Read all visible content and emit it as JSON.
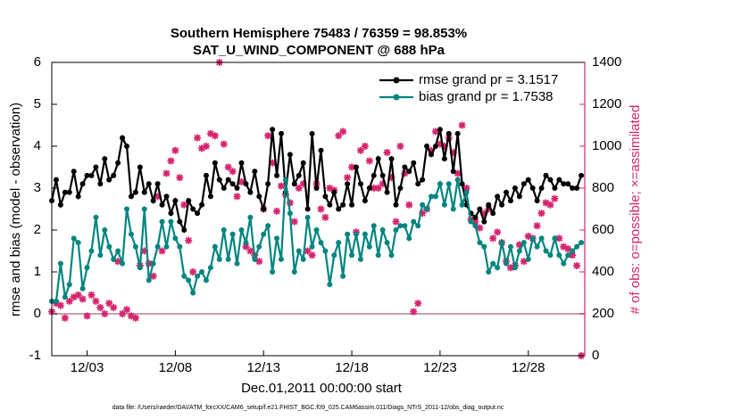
{
  "chart_data": {
    "type": "line",
    "title": "Southern Hemisphere 75483 / 76359 = 98.853%",
    "subtitle": "SAT_U_WIND_COMPONENT @ 688 hPa",
    "x_label": "Dec.01,2011 00:00:00 start",
    "y_label": "rmse and bias (model - observation)",
    "y2_label": "# of obs: o=possible; ×=assimilated",
    "footnote": "data file: /Users/raeder/DAI/ATM_forcXX/CAM6_setup/f.e21.FHIST_BGC.f09_025.CAM6assim.011/Diags_NTrS_2011-12/obs_diag_output.nc",
    "legend": "upper right",
    "hline": 0,
    "xlim": [
      0,
      30.2
    ],
    "xticks": [
      {
        "value": 2,
        "label": "12/03"
      },
      {
        "value": 7,
        "label": "12/08"
      },
      {
        "value": 12,
        "label": "12/13"
      },
      {
        "value": 17,
        "label": "12/18"
      },
      {
        "value": 22,
        "label": "12/23"
      },
      {
        "value": 27,
        "label": "12/28"
      }
    ],
    "ylim": [
      -1,
      6
    ],
    "yticks": [
      -1,
      0,
      1,
      2,
      3,
      4,
      5,
      6
    ],
    "y2lim": [
      0,
      1400
    ],
    "y2ticks": [
      0,
      200,
      400,
      600,
      800,
      1000,
      1200,
      1400
    ],
    "x": [
      0,
      0.25,
      0.5,
      0.75,
      1,
      1.25,
      1.5,
      1.75,
      2,
      2.25,
      2.5,
      2.75,
      3,
      3.25,
      3.5,
      3.75,
      4,
      4.25,
      4.5,
      4.75,
      5,
      5.25,
      5.5,
      5.75,
      6,
      6.25,
      6.5,
      6.75,
      7,
      7.25,
      7.5,
      7.75,
      8,
      8.25,
      8.5,
      8.75,
      9,
      9.25,
      9.5,
      9.75,
      10,
      10.25,
      10.5,
      10.75,
      11,
      11.25,
      11.5,
      11.75,
      12,
      12.25,
      12.5,
      12.75,
      13,
      13.25,
      13.5,
      13.75,
      14,
      14.25,
      14.5,
      14.75,
      15,
      15.25,
      15.5,
      15.75,
      16,
      16.25,
      16.5,
      16.75,
      17,
      17.25,
      17.5,
      17.75,
      18,
      18.25,
      18.5,
      18.75,
      19,
      19.25,
      19.5,
      19.75,
      20,
      20.25,
      20.5,
      20.75,
      21,
      21.25,
      21.5,
      21.75,
      22,
      22.25,
      22.5,
      22.75,
      23,
      23.25,
      23.5,
      23.75,
      24,
      24.25,
      24.5,
      24.75,
      25,
      25.25,
      25.5,
      25.75,
      26,
      26.25,
      26.5,
      26.75,
      27,
      27.25,
      27.5,
      27.75,
      28,
      28.25,
      28.5,
      28.75,
      29,
      29.25,
      29.5,
      29.75,
      30
    ],
    "series": [
      {
        "name": "rmse grand pr = 3.1517",
        "color": "#000000",
        "values": [
          2.7,
          3.2,
          2.6,
          2.9,
          2.9,
          3.4,
          2.8,
          3.1,
          3.3,
          3.3,
          3.5,
          3.1,
          3.7,
          3.2,
          3.3,
          3.6,
          4.2,
          4.0,
          2.8,
          2.9,
          3.5,
          2.9,
          3.1,
          2.7,
          3.1,
          2.6,
          2.8,
          2.4,
          2.7,
          2.2,
          2.0,
          2.7,
          2.5,
          2.4,
          2.6,
          3.3,
          2.8,
          3.6,
          3.2,
          3.0,
          3.2,
          3.1,
          3.0,
          3.6,
          3.1,
          2.9,
          3.4,
          2.8,
          2.5,
          3.1,
          4.4,
          3.3,
          4.3,
          2.9,
          3.8,
          3.1,
          3.3,
          3.6,
          2.5,
          4.3,
          3.0,
          3.9,
          2.8,
          2.6,
          2.9,
          2.5,
          2.6,
          3.1,
          2.6,
          3.5,
          3.1,
          2.7,
          3.0,
          3.3,
          3.7,
          3.3,
          2.9,
          3.7,
          2.6,
          3.0,
          3.5,
          3.4,
          3.6,
          3.1,
          3.2,
          4.0,
          3.8,
          4.0,
          4.4,
          3.7,
          4.3,
          3.4,
          4.3,
          3.1,
          2.6,
          2.4,
          2.3,
          2.5,
          2.2,
          2.6,
          2.4,
          2.8,
          2.6,
          2.9,
          2.7,
          3.0,
          2.8,
          3.1,
          3.2,
          3.0,
          2.7,
          3.0,
          3.3,
          3.2,
          3.0,
          3.2,
          3.1,
          3.1,
          3.0,
          3.0,
          3.3
        ]
      },
      {
        "name": "bias grand pr = 1.7538",
        "color": "#00857f",
        "values": [
          0.3,
          0.3,
          1.2,
          0.4,
          0.7,
          1.8,
          1.7,
          0.6,
          1.1,
          1.5,
          2.3,
          1.4,
          2.0,
          1.6,
          1.3,
          1.5,
          1.2,
          2.5,
          1.9,
          1.6,
          1.1,
          2.5,
          0.8,
          1.2,
          1.6,
          2.2,
          1.6,
          2.2,
          1.8,
          1.6,
          0.9,
          0.8,
          0.5,
          0.9,
          1.0,
          0.8,
          1.1,
          1.6,
          1.3,
          2.0,
          1.3,
          1.9,
          1.2,
          2.0,
          1.7,
          2.3,
          1.3,
          1.6,
          1.9,
          2.1,
          1.0,
          1.8,
          1.3,
          3.2,
          2.4,
          1.0,
          1.5,
          1.3,
          2.3,
          1.6,
          2.0,
          1.7,
          1.5,
          0.7,
          1.4,
          1.7,
          0.9,
          1.9,
          1.4,
          1.9,
          1.3,
          1.9,
          1.6,
          2.1,
          1.4,
          2.0,
          1.7,
          1.4,
          2.0,
          2.1,
          2.1,
          1.8,
          2.2,
          2.1,
          2.6,
          2.5,
          2.8,
          2.8,
          3.1,
          2.6,
          3.1,
          2.5,
          3.2,
          2.6,
          2.9,
          2.2,
          2.1,
          1.7,
          1.6,
          1.0,
          1.2,
          1.1,
          1.7,
          1.2,
          1.6,
          1.1,
          1.5,
          1.7,
          1.3,
          1.8,
          1.6,
          1.8,
          1.5,
          1.4,
          1.8,
          1.4,
          1.2,
          1.4,
          1.5,
          1.6,
          1.7
        ]
      },
      {
        "type": "scatter",
        "axis": "y2",
        "color": "#d6246e",
        "values": [
          210,
          250,
          240,
          180,
          260,
          280,
          290,
          270,
          190,
          290,
          260,
          230,
          200,
          250,
          230,
          450,
          200,
          220,
          190,
          180,
          430,
          500,
          440,
          380,
          760,
          500,
          870,
          930,
          980,
          850,
          720,
          550,
          400,
          1040,
          990,
          1000,
          1060,
          1050,
          1400,
          1010,
          900,
          880,
          760,
          830,
          520,
          500,
          480,
          450,
          700,
          1050,
          920,
          690,
          810,
          770,
          730,
          640,
          800,
          820,
          500,
          480,
          820,
          700,
          660,
          800,
          790,
          1050,
          1070,
          850,
          900,
          590,
          980,
          1000,
          930,
          800,
          800,
          820,
          970,
          850,
          640,
          1000,
          870,
          720,
          210,
          250,
          680,
          700,
          980,
          1070,
          1010,
          1000,
          1040,
          970,
          870,
          1100,
          800,
          650,
          640,
          610,
          680,
          700,
          560,
          590,
          540,
          450,
          420,
          430,
          530,
          450,
          570,
          560,
          620,
          680,
          730,
          720,
          750,
          560,
          520,
          510,
          480,
          430,
          0
        ]
      }
    ]
  }
}
